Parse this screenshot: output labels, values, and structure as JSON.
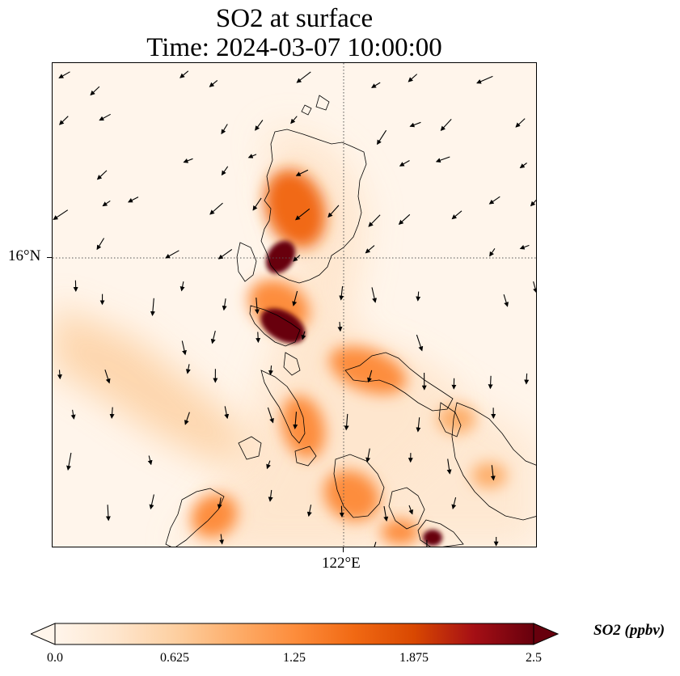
{
  "title": {
    "line1": "SO2 at surface",
    "line2": "Time: 2024-03-07 10:00:00"
  },
  "axes": {
    "lat_label": "16°N",
    "lon_label": "122°E"
  },
  "colorbar": {
    "units": "SO2 (ppbv)",
    "ticks": [
      "0.0",
      "0.625",
      "1.25",
      "1.875",
      "2.5"
    ],
    "min": 0,
    "max": 2.5,
    "colors": [
      "#fff5eb",
      "#fee6ce",
      "#fdd0a2",
      "#fdae6b",
      "#fd8d3c",
      "#f16913",
      "#d94801",
      "#a50f15",
      "#67000d"
    ]
  },
  "chart_data": {
    "type": "heatmap",
    "title": "SO2 at surface\nTime: 2024-03-07 10:00:00",
    "variable": "SO2 at surface",
    "units": "ppbv",
    "range": [
      0,
      2.5
    ],
    "gridlines": {
      "lat": [
        "16°N"
      ],
      "lon": [
        "122°E"
      ]
    },
    "wind_arrows": "present",
    "coastline": "present",
    "hotspot_values_ppbv": [
      2.5,
      2.5,
      2.5,
      1.6,
      1.3,
      1.2,
      1.1,
      1.0,
      0.9
    ]
  }
}
